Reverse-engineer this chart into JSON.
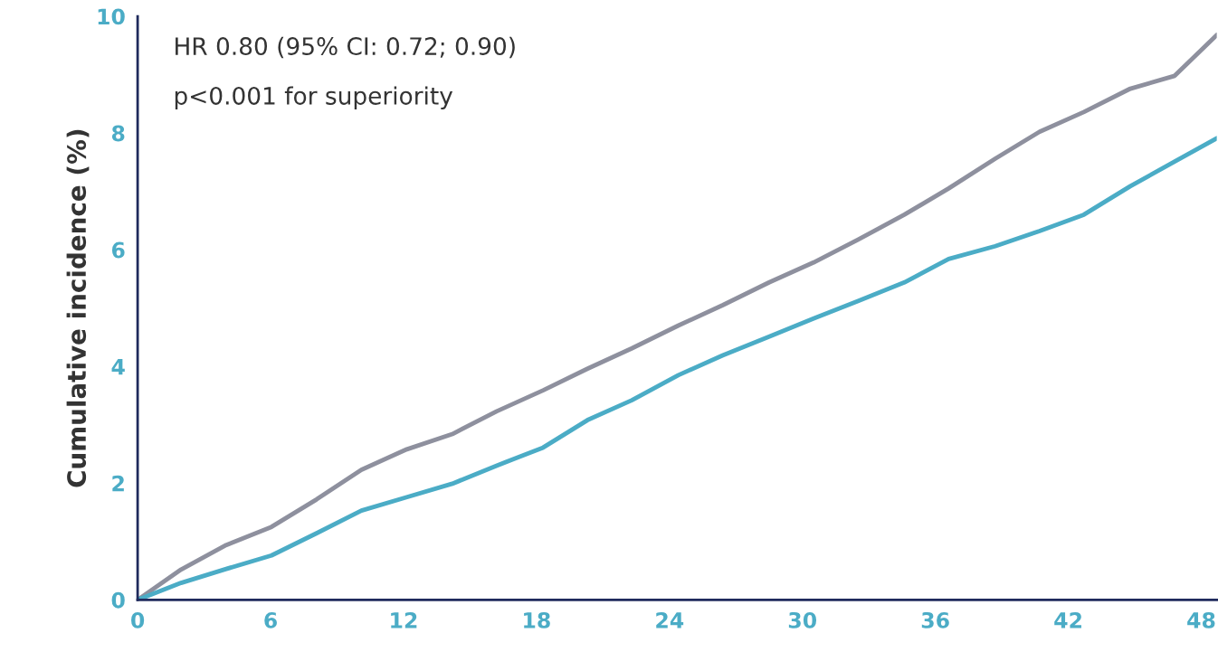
{
  "chart_data": {
    "type": "line",
    "ylabel": "Cumulative incidence (%)",
    "annotations": [
      "HR 0.80 (95% CI: 0.72; 0.90)",
      "p<0.001 for superiority"
    ],
    "x": [
      0,
      1.96,
      4.0,
      6.04,
      8.07,
      10.1,
      12.15,
      14.2,
      16.2,
      18.3,
      20.3,
      22.3,
      24.4,
      26.4,
      28.5,
      30.5,
      32.5,
      34.6,
      36.6,
      38.7,
      40.7,
      42.7,
      44.8,
      46.8,
      48.7
    ],
    "series": [
      {
        "color": "#8e909e",
        "values": [
          0,
          0.52,
          0.94,
          1.25,
          1.72,
          2.23,
          2.58,
          2.84,
          3.23,
          3.59,
          3.96,
          4.31,
          4.7,
          5.05,
          5.44,
          5.78,
          6.17,
          6.6,
          7.05,
          7.56,
          8.02,
          8.36,
          8.76,
          8.98,
          9.68
        ]
      },
      {
        "color": "#4bacc6",
        "values": [
          0,
          0.29,
          0.53,
          0.76,
          1.14,
          1.53,
          1.76,
          1.99,
          2.3,
          2.61,
          3.08,
          3.42,
          3.85,
          4.19,
          4.51,
          4.82,
          5.12,
          5.44,
          5.84,
          6.06,
          6.32,
          6.6,
          7.09,
          7.51,
          7.91
        ]
      }
    ],
    "xlim": [
      0,
      48.7
    ],
    "xticks": [
      0,
      6,
      12,
      18,
      24,
      30,
      36,
      42,
      48
    ],
    "ylim": [
      0,
      10
    ],
    "yticks": [
      0,
      2,
      4,
      6,
      8,
      10
    ],
    "grid": false,
    "legend": false,
    "marker": "none",
    "line_style": "solid"
  }
}
